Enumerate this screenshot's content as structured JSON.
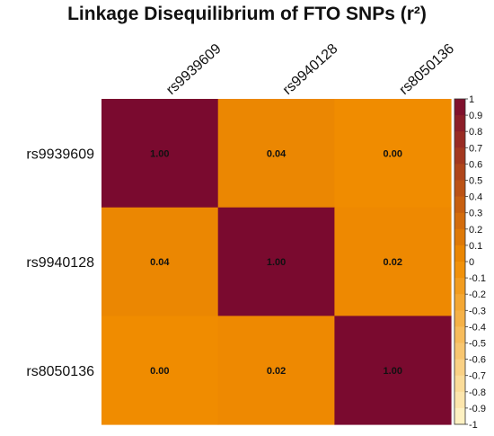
{
  "chart_data": {
    "type": "heatmap",
    "title": "Linkage Disequilibrium of FTO SNPs (r²)",
    "row_labels": [
      "rs9939609",
      "rs9940128",
      "rs8050136"
    ],
    "col_labels": [
      "rs9939609",
      "rs9940128",
      "rs8050136"
    ],
    "values": [
      [
        1.0,
        0.04,
        0.0
      ],
      [
        0.04,
        1.0,
        0.02
      ],
      [
        0.0,
        0.02,
        1.0
      ]
    ],
    "value_labels": [
      [
        "1.00",
        "0.04",
        "0.00"
      ],
      [
        "0.04",
        "1.00",
        "0.02"
      ],
      [
        "0.00",
        "0.02",
        "1.00"
      ]
    ],
    "colorbar": {
      "range": [
        -1,
        1
      ],
      "ticks": [
        1,
        0.9,
        0.8,
        0.7,
        0.6,
        0.5,
        0.4,
        0.3,
        0.2,
        0.1,
        0,
        -0.1,
        -0.2,
        -0.3,
        -0.4,
        -0.5,
        -0.6,
        -0.7,
        -0.8,
        -0.9,
        -1
      ],
      "tick_labels": [
        "1",
        "0.9",
        "0.8",
        "0.7",
        "0.6",
        "0.5",
        "0.4",
        "0.3",
        "0.2",
        "0.1",
        "0",
        "-0.1",
        "-0.2",
        "-0.3",
        "-0.4",
        "-0.5",
        "-0.6",
        "-0.7",
        "-0.8",
        "-0.9",
        "-1"
      ]
    },
    "colors": {
      "high": "#7a0a2f",
      "mid": "#f08c00",
      "low": "#fff6cc"
    },
    "legend_placement": "right",
    "grid": false
  }
}
